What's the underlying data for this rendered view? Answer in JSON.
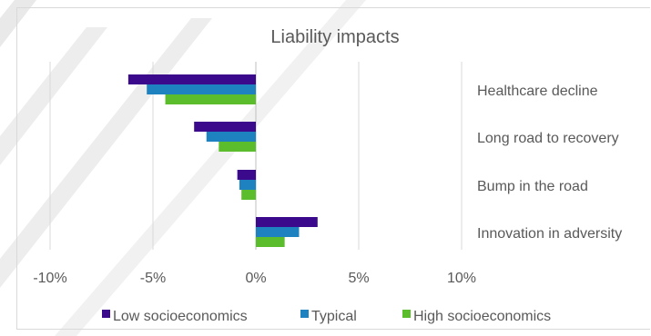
{
  "chart_data": {
    "type": "bar",
    "orientation": "horizontal",
    "title": "Liability impacts",
    "categories": [
      "Healthcare decline",
      "Long road to recovery",
      "Bump in the road",
      "Innovation in adversity"
    ],
    "series": [
      {
        "name": "Low socioeconomics",
        "color": "#3b0a8c",
        "values": [
          -6.2,
          -3.0,
          -0.9,
          3.0
        ]
      },
      {
        "name": "Typical",
        "color": "#1f82c0",
        "values": [
          -5.3,
          -2.4,
          -0.8,
          2.1
        ]
      },
      {
        "name": "High socioeconomics",
        "color": "#5bbd2b",
        "values": [
          -4.4,
          -1.8,
          -0.7,
          1.4
        ]
      }
    ],
    "xlim": [
      -10,
      10
    ],
    "xticks": [
      "-10%",
      "-5%",
      "0%",
      "5%",
      "10%"
    ],
    "xtick_values": [
      -10,
      -5,
      0,
      5,
      10
    ],
    "grid": true,
    "legend_position": "bottom"
  }
}
